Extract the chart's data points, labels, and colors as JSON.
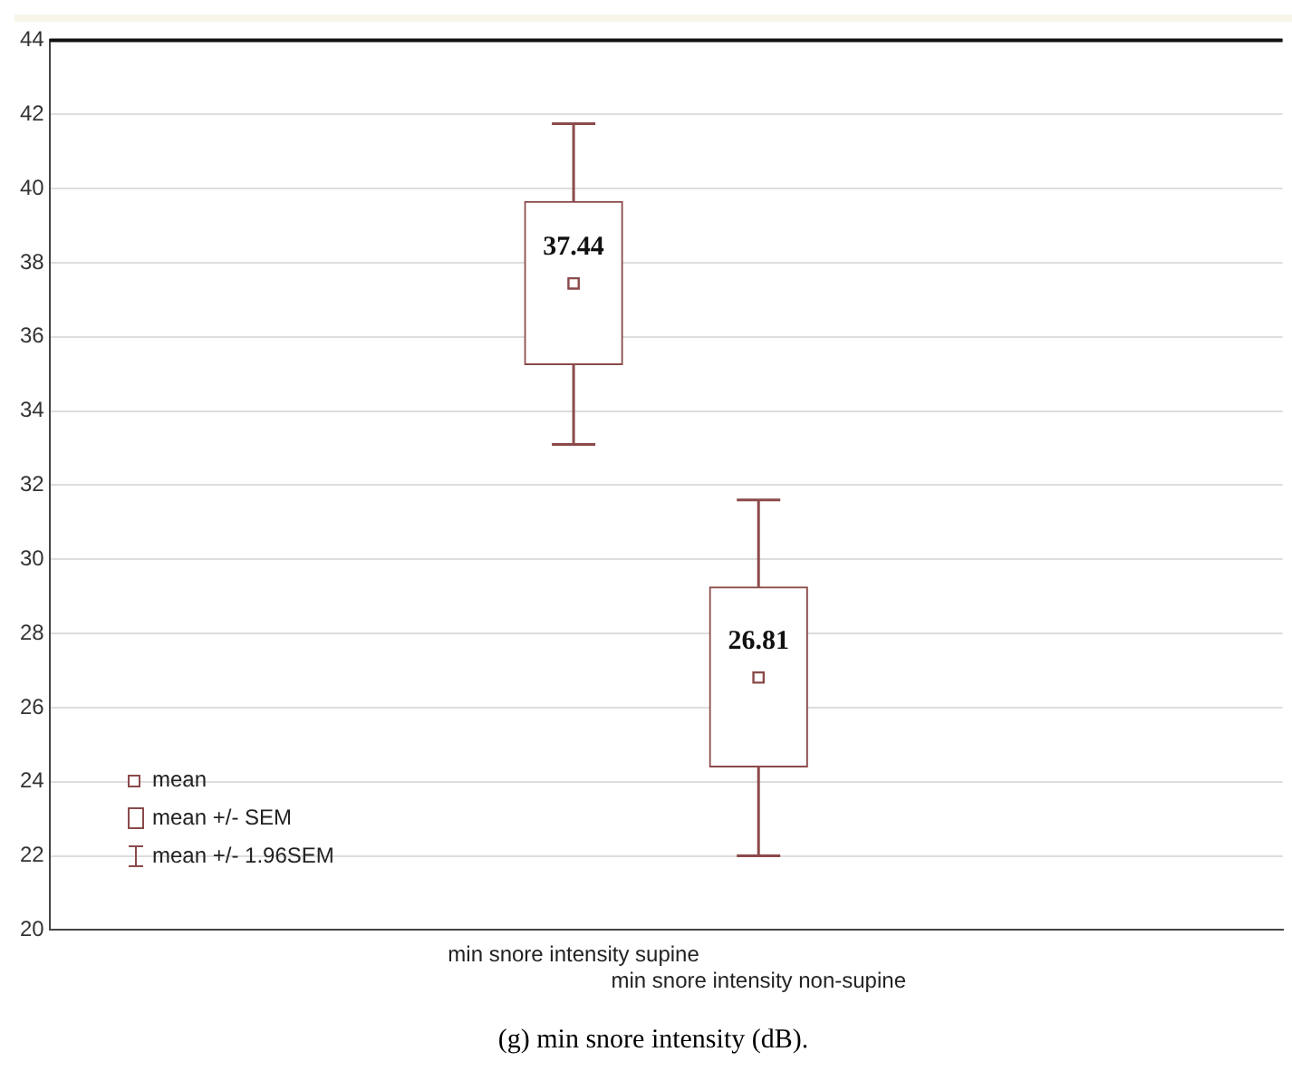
{
  "chart_data": {
    "type": "box",
    "title": "(g) min snore intensity (dB).",
    "categories": [
      "min snore intensity supine",
      "min snore intensity non-supine"
    ],
    "boxes": [
      {
        "low": 33.1,
        "q1": 35.25,
        "median": 37.44,
        "q3": 39.65,
        "high": 41.75
      },
      {
        "low": 22.0,
        "q1": 24.4,
        "median": 26.81,
        "q3": 29.25,
        "high": 31.6
      }
    ],
    "value_labels": [
      "37.44",
      "26.81"
    ],
    "color": "#8b4a4a",
    "ylim": [
      20,
      44
    ],
    "yticks": [
      20,
      22,
      24,
      26,
      28,
      30,
      32,
      34,
      36,
      38,
      40,
      42,
      44
    ],
    "grid": "y",
    "marker": "square",
    "annotations": [
      "mean",
      "mean +/- SEM",
      "mean +/- 1.96SEM"
    ]
  }
}
